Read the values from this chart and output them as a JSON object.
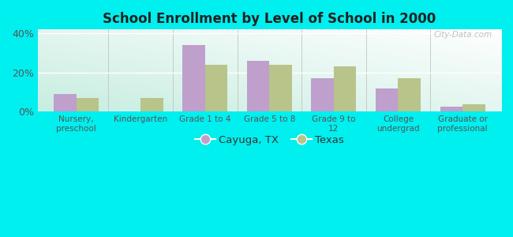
{
  "title": "School Enrollment by Level of School in 2000",
  "categories": [
    "Nursery,\npreschool",
    "Kindergarten",
    "Grade 1 to 4",
    "Grade 5 to 8",
    "Grade 9 to\n12",
    "College\nundergrad",
    "Graduate or\nprofessional"
  ],
  "cayuga_values": [
    9.0,
    0.0,
    34.0,
    26.0,
    17.0,
    12.0,
    2.5
  ],
  "texas_values": [
    7.0,
    7.0,
    24.0,
    24.0,
    23.0,
    17.0,
    4.0
  ],
  "cayuga_color": "#bf9fcc",
  "texas_color": "#b8c48a",
  "background_color": "#00efef",
  "ylim": [
    0,
    42
  ],
  "yticks": [
    0,
    20,
    40
  ],
  "ytick_labels": [
    "0%",
    "20%",
    "40%"
  ],
  "bar_width": 0.35,
  "legend_labels": [
    "Cayuga, TX",
    "Texas"
  ],
  "watermark": "City-Data.com"
}
